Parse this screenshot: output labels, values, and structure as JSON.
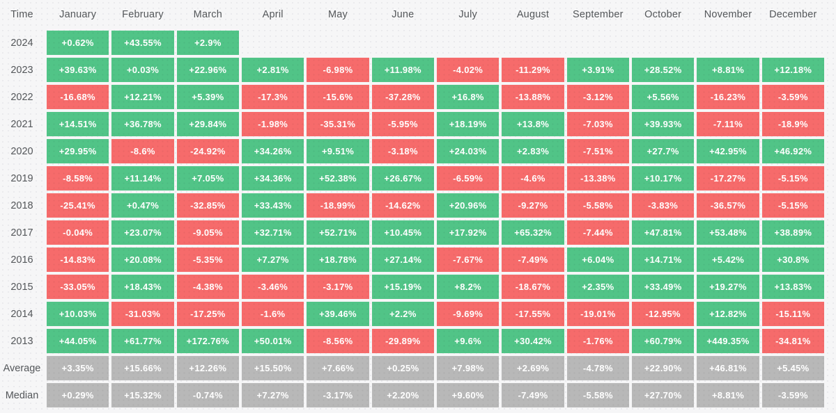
{
  "colors": {
    "positive": "#51c487",
    "negative": "#f66b6b",
    "summary": "#b8b8b8",
    "cell_text": "#ffffff",
    "label_text": "#54575a",
    "background": "#f6f6f7"
  },
  "chart_data": {
    "type": "heatmap",
    "corner_label": "Time",
    "value_suffix": "%",
    "columns": [
      "January",
      "February",
      "March",
      "April",
      "May",
      "June",
      "July",
      "August",
      "September",
      "October",
      "November",
      "December"
    ],
    "rows": [
      {
        "label": "2024",
        "kind": "year",
        "display": [
          "+0.62%",
          "+43.55%",
          "+2.9%",
          null,
          null,
          null,
          null,
          null,
          null,
          null,
          null,
          null
        ],
        "values": [
          0.62,
          43.55,
          2.9,
          null,
          null,
          null,
          null,
          null,
          null,
          null,
          null,
          null
        ]
      },
      {
        "label": "2023",
        "kind": "year",
        "display": [
          "+39.63%",
          "+0.03%",
          "+22.96%",
          "+2.81%",
          "-6.98%",
          "+11.98%",
          "-4.02%",
          "-11.29%",
          "+3.91%",
          "+28.52%",
          "+8.81%",
          "+12.18%"
        ],
        "values": [
          39.63,
          0.03,
          22.96,
          2.81,
          -6.98,
          11.98,
          -4.02,
          -11.29,
          3.91,
          28.52,
          8.81,
          12.18
        ]
      },
      {
        "label": "2022",
        "kind": "year",
        "display": [
          "-16.68%",
          "+12.21%",
          "+5.39%",
          "-17.3%",
          "-15.6%",
          "-37.28%",
          "+16.8%",
          "-13.88%",
          "-3.12%",
          "+5.56%",
          "-16.23%",
          "-3.59%"
        ],
        "values": [
          -16.68,
          12.21,
          5.39,
          -17.3,
          -15.6,
          -37.28,
          16.8,
          -13.88,
          -3.12,
          5.56,
          -16.23,
          -3.59
        ]
      },
      {
        "label": "2021",
        "kind": "year",
        "display": [
          "+14.51%",
          "+36.78%",
          "+29.84%",
          "-1.98%",
          "-35.31%",
          "-5.95%",
          "+18.19%",
          "+13.8%",
          "-7.03%",
          "+39.93%",
          "-7.11%",
          "-18.9%"
        ],
        "values": [
          14.51,
          36.78,
          29.84,
          -1.98,
          -35.31,
          -5.95,
          18.19,
          13.8,
          -7.03,
          39.93,
          -7.11,
          -18.9
        ]
      },
      {
        "label": "2020",
        "kind": "year",
        "display": [
          "+29.95%",
          "-8.6%",
          "-24.92%",
          "+34.26%",
          "+9.51%",
          "-3.18%",
          "+24.03%",
          "+2.83%",
          "-7.51%",
          "+27.7%",
          "+42.95%",
          "+46.92%"
        ],
        "values": [
          29.95,
          -8.6,
          -24.92,
          34.26,
          9.51,
          -3.18,
          24.03,
          2.83,
          -7.51,
          27.7,
          42.95,
          46.92
        ]
      },
      {
        "label": "2019",
        "kind": "year",
        "display": [
          "-8.58%",
          "+11.14%",
          "+7.05%",
          "+34.36%",
          "+52.38%",
          "+26.67%",
          "-6.59%",
          "-4.6%",
          "-13.38%",
          "+10.17%",
          "-17.27%",
          "-5.15%"
        ],
        "values": [
          -8.58,
          11.14,
          7.05,
          34.36,
          52.38,
          26.67,
          -6.59,
          -4.6,
          -13.38,
          10.17,
          -17.27,
          -5.15
        ]
      },
      {
        "label": "2018",
        "kind": "year",
        "display": [
          "-25.41%",
          "+0.47%",
          "-32.85%",
          "+33.43%",
          "-18.99%",
          "-14.62%",
          "+20.96%",
          "-9.27%",
          "-5.58%",
          "-3.83%",
          "-36.57%",
          "-5.15%"
        ],
        "values": [
          -25.41,
          0.47,
          -32.85,
          33.43,
          -18.99,
          -14.62,
          20.96,
          -9.27,
          -5.58,
          -3.83,
          -36.57,
          -5.15
        ]
      },
      {
        "label": "2017",
        "kind": "year",
        "display": [
          "-0.04%",
          "+23.07%",
          "-9.05%",
          "+32.71%",
          "+52.71%",
          "+10.45%",
          "+17.92%",
          "+65.32%",
          "-7.44%",
          "+47.81%",
          "+53.48%",
          "+38.89%"
        ],
        "values": [
          -0.04,
          23.07,
          -9.05,
          32.71,
          52.71,
          10.45,
          17.92,
          65.32,
          -7.44,
          47.81,
          53.48,
          38.89
        ]
      },
      {
        "label": "2016",
        "kind": "year",
        "display": [
          "-14.83%",
          "+20.08%",
          "-5.35%",
          "+7.27%",
          "+18.78%",
          "+27.14%",
          "-7.67%",
          "-7.49%",
          "+6.04%",
          "+14.71%",
          "+5.42%",
          "+30.8%"
        ],
        "values": [
          -14.83,
          20.08,
          -5.35,
          7.27,
          18.78,
          27.14,
          -7.67,
          -7.49,
          6.04,
          14.71,
          5.42,
          30.8
        ]
      },
      {
        "label": "2015",
        "kind": "year",
        "display": [
          "-33.05%",
          "+18.43%",
          "-4.38%",
          "-3.46%",
          "-3.17%",
          "+15.19%",
          "+8.2%",
          "-18.67%",
          "+2.35%",
          "+33.49%",
          "+19.27%",
          "+13.83%"
        ],
        "values": [
          -33.05,
          18.43,
          -4.38,
          -3.46,
          -3.17,
          15.19,
          8.2,
          -18.67,
          2.35,
          33.49,
          19.27,
          13.83
        ]
      },
      {
        "label": "2014",
        "kind": "year",
        "display": [
          "+10.03%",
          "-31.03%",
          "-17.25%",
          "-1.6%",
          "+39.46%",
          "+2.2%",
          "-9.69%",
          "-17.55%",
          "-19.01%",
          "-12.95%",
          "+12.82%",
          "-15.11%"
        ],
        "values": [
          10.03,
          -31.03,
          -17.25,
          -1.6,
          39.46,
          2.2,
          -9.69,
          -17.55,
          -19.01,
          -12.95,
          12.82,
          -15.11
        ]
      },
      {
        "label": "2013",
        "kind": "year",
        "display": [
          "+44.05%",
          "+61.77%",
          "+172.76%",
          "+50.01%",
          "-8.56%",
          "-29.89%",
          "+9.6%",
          "+30.42%",
          "-1.76%",
          "+60.79%",
          "+449.35%",
          "-34.81%"
        ],
        "values": [
          44.05,
          61.77,
          172.76,
          50.01,
          -8.56,
          -29.89,
          9.6,
          30.42,
          -1.76,
          60.79,
          449.35,
          -34.81
        ]
      },
      {
        "label": "Average",
        "kind": "summary",
        "display": [
          "+3.35%",
          "+15.66%",
          "+12.26%",
          "+15.50%",
          "+7.66%",
          "+0.25%",
          "+7.98%",
          "+2.69%",
          "-4.78%",
          "+22.90%",
          "+46.81%",
          "+5.45%"
        ],
        "values": [
          3.35,
          15.66,
          12.26,
          15.5,
          7.66,
          0.25,
          7.98,
          2.69,
          -4.78,
          22.9,
          46.81,
          5.45
        ]
      },
      {
        "label": "Median",
        "kind": "summary",
        "display": [
          "+0.29%",
          "+15.32%",
          "-0.74%",
          "+7.27%",
          "-3.17%",
          "+2.20%",
          "+9.60%",
          "-7.49%",
          "-5.58%",
          "+27.70%",
          "+8.81%",
          "-3.59%"
        ],
        "values": [
          0.29,
          15.32,
          -0.74,
          7.27,
          -3.17,
          2.2,
          9.6,
          -7.49,
          -5.58,
          27.7,
          8.81,
          -3.59
        ]
      }
    ]
  }
}
